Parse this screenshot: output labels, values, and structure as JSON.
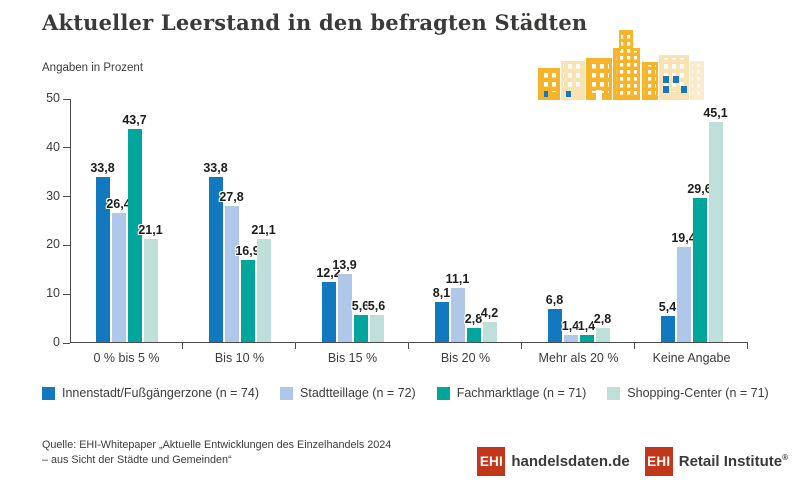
{
  "header": {
    "title": "Aktueller Leerstand in den befragten Städten",
    "subtitle": "Angaben in Prozent"
  },
  "chart_data": {
    "type": "bar",
    "title": "Aktueller Leerstand in den befragten Städten",
    "subtitle": "Angaben in Prozent",
    "xlabel": "",
    "ylabel": "",
    "ylim": [
      0,
      50
    ],
    "yticks": [
      0,
      10,
      20,
      30,
      40,
      50
    ],
    "grid": false,
    "legend_position": "bottom",
    "value_labels": true,
    "decimal_separator": ",",
    "categories": [
      "0 % bis 5 %",
      "Bis 10 %",
      "Bis 15 %",
      "Bis 20 %",
      "Mehr als 20 %",
      "Keine Angabe"
    ],
    "series": [
      {
        "name": "Innenstadt/Fußgängerzone (n = 74)",
        "color": "#1379BF",
        "values": [
          33.8,
          33.8,
          12.2,
          8.1,
          6.8,
          5.4
        ]
      },
      {
        "name": "Stadtteillage (n = 72)",
        "color": "#AFC7E8",
        "values": [
          26.4,
          27.8,
          13.9,
          11.1,
          1.4,
          19.4
        ]
      },
      {
        "name": "Fachmarktlage (n = 71)",
        "color": "#00A59B",
        "values": [
          43.7,
          16.9,
          5.6,
          2.8,
          1.4,
          29.6
        ]
      },
      {
        "name": "Shopping-Center (n = 71)",
        "color": "#BEDFDA",
        "values": [
          21.1,
          21.1,
          5.6,
          4.2,
          2.8,
          45.1
        ]
      }
    ]
  },
  "footer": {
    "source_line1": "Quelle: EHI-Whitepaper „Aktuelle Entwicklungen des Einzelhandels 2024",
    "source_line2": "– aus Sicht der Städte und Gemeinden“",
    "logos": [
      {
        "box": "EHI",
        "text": "handelsdaten.de"
      },
      {
        "box": "EHI",
        "text": "Retail Institute",
        "registered": "®"
      }
    ]
  }
}
